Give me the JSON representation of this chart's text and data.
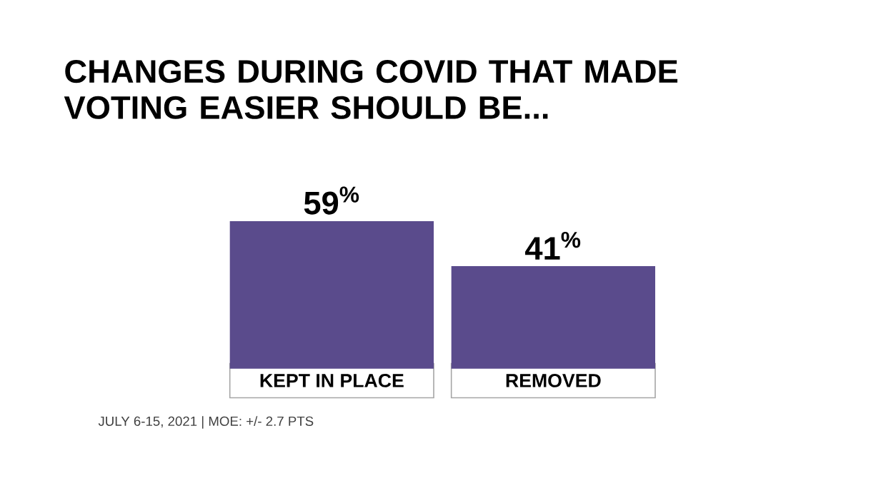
{
  "chart_data": {
    "type": "bar",
    "title": "CHANGES DURING COVID THAT MADE VOTING EASIER SHOULD BE...",
    "categories": [
      "KEPT IN PLACE",
      "REMOVED"
    ],
    "values": [
      59,
      41
    ],
    "value_labels": [
      "59$^{%}$",
      "41$^{%}$"
    ],
    "colors": [
      "#5a4b8c",
      "#5a4b8c"
    ],
    "annotations": [
      "JULY 6-15, 2021 | MOE: +/- 2.7 PTS"
    ]
  }
}
